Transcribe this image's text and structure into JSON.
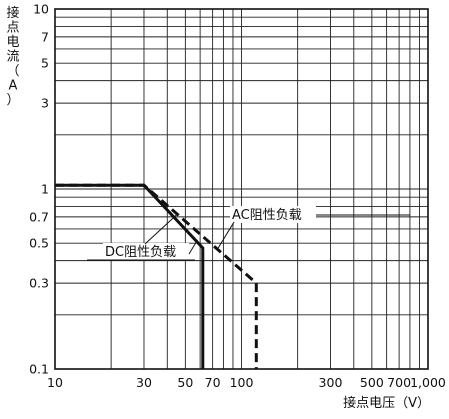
{
  "chart_data": {
    "type": "line",
    "title": "",
    "xlabel": "接点电压（V）",
    "ylabel": "接点电流（A）",
    "x_scale": "log",
    "y_scale": "log",
    "xlim": [
      10,
      1000
    ],
    "ylim": [
      0.1,
      10
    ],
    "grid": true,
    "x_ticks": [
      {
        "value": 10,
        "label": "10"
      },
      {
        "value": 30,
        "label": "30"
      },
      {
        "value": 50,
        "label": "50"
      },
      {
        "value": 70,
        "label": "70"
      },
      {
        "value": 100,
        "label": "100"
      },
      {
        "value": 300,
        "label": "300"
      },
      {
        "value": 500,
        "label": "500"
      },
      {
        "value": 700,
        "label": "700"
      },
      {
        "value": 1000,
        "label": "1,000"
      }
    ],
    "y_ticks": [
      {
        "value": 0.1,
        "label": "0.1"
      },
      {
        "value": 0.3,
        "label": "0.3"
      },
      {
        "value": 0.5,
        "label": "0.5"
      },
      {
        "value": 0.7,
        "label": "0.7"
      },
      {
        "value": 1,
        "label": "1"
      },
      {
        "value": 3,
        "label": "3"
      },
      {
        "value": 5,
        "label": "5"
      },
      {
        "value": 7,
        "label": "7"
      },
      {
        "value": 10,
        "label": "10"
      }
    ],
    "series": [
      {
        "name": "DC阻性负载",
        "line_style": "solid",
        "color": "#111111",
        "points": [
          [
            10,
            1.05
          ],
          [
            30,
            1.05
          ],
          [
            62,
            0.47
          ],
          [
            62,
            0.1
          ]
        ]
      },
      {
        "name": "AC阻性负载",
        "line_style": "dashed",
        "color": "#111111",
        "points": [
          [
            10,
            1.05
          ],
          [
            30,
            1.05
          ],
          [
            120,
            0.3
          ],
          [
            120,
            0.1
          ]
        ]
      }
    ]
  }
}
